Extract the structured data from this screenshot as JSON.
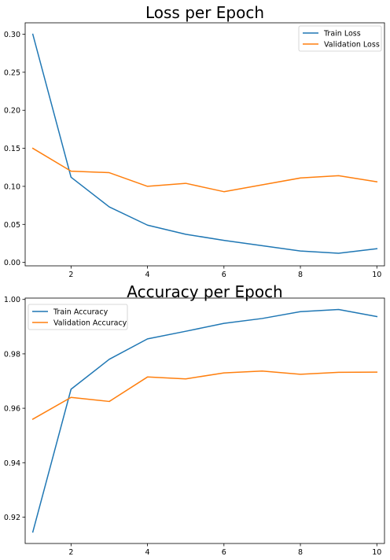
{
  "chart_data": [
    {
      "type": "line",
      "title": "Loss per Epoch",
      "xlabel": "",
      "ylabel": "",
      "x": [
        1,
        2,
        3,
        4,
        5,
        6,
        7,
        8,
        9,
        10
      ],
      "xlim": [
        0.8,
        10.2
      ],
      "ylim": [
        -0.0045,
        0.315
      ],
      "xticks": [
        2,
        4,
        6,
        8,
        10
      ],
      "xtick_labels": [
        "2",
        "4",
        "6",
        "8",
        "10"
      ],
      "yticks": [
        0.0,
        0.05,
        0.1,
        0.15,
        0.2,
        0.25,
        0.3
      ],
      "ytick_labels": [
        "0.00",
        "0.05",
        "0.10",
        "0.15",
        "0.20",
        "0.25",
        "0.30"
      ],
      "grid": false,
      "legend_position": "top-right",
      "series": [
        {
          "name": "Train Loss",
          "color": "#1f77b4",
          "values": [
            0.3,
            0.112,
            0.073,
            0.049,
            0.037,
            0.029,
            0.022,
            0.015,
            0.012,
            0.018
          ]
        },
        {
          "name": "Validation Loss",
          "color": "#ff7f0e",
          "values": [
            0.15,
            0.12,
            0.118,
            0.1,
            0.104,
            0.093,
            0.102,
            0.111,
            0.114,
            0.106
          ]
        }
      ]
    },
    {
      "type": "line",
      "title": "Accuracy per Epoch",
      "xlabel": "",
      "ylabel": "",
      "x": [
        1,
        2,
        3,
        4,
        5,
        6,
        7,
        8,
        9,
        10
      ],
      "xlim": [
        0.8,
        10.2
      ],
      "ylim": [
        0.9103,
        1.0005
      ],
      "xticks": [
        2,
        4,
        6,
        8,
        10
      ],
      "xtick_labels": [
        "2",
        "4",
        "6",
        "8",
        "10"
      ],
      "yticks": [
        0.92,
        0.94,
        0.96,
        0.98,
        1.0
      ],
      "ytick_labels": [
        "0.92",
        "0.94",
        "0.96",
        "0.98",
        "1.00"
      ],
      "grid": false,
      "legend_position": "top-left",
      "series": [
        {
          "name": "Train Accuracy",
          "color": "#1f77b4",
          "values": [
            0.9145,
            0.967,
            0.978,
            0.9855,
            0.9883,
            0.9912,
            0.993,
            0.9955,
            0.9963,
            0.9937
          ]
        },
        {
          "name": "Validation Accuracy",
          "color": "#ff7f0e",
          "values": [
            0.956,
            0.964,
            0.9625,
            0.9715,
            0.9708,
            0.973,
            0.9737,
            0.9725,
            0.9732,
            0.9733
          ]
        }
      ]
    }
  ]
}
